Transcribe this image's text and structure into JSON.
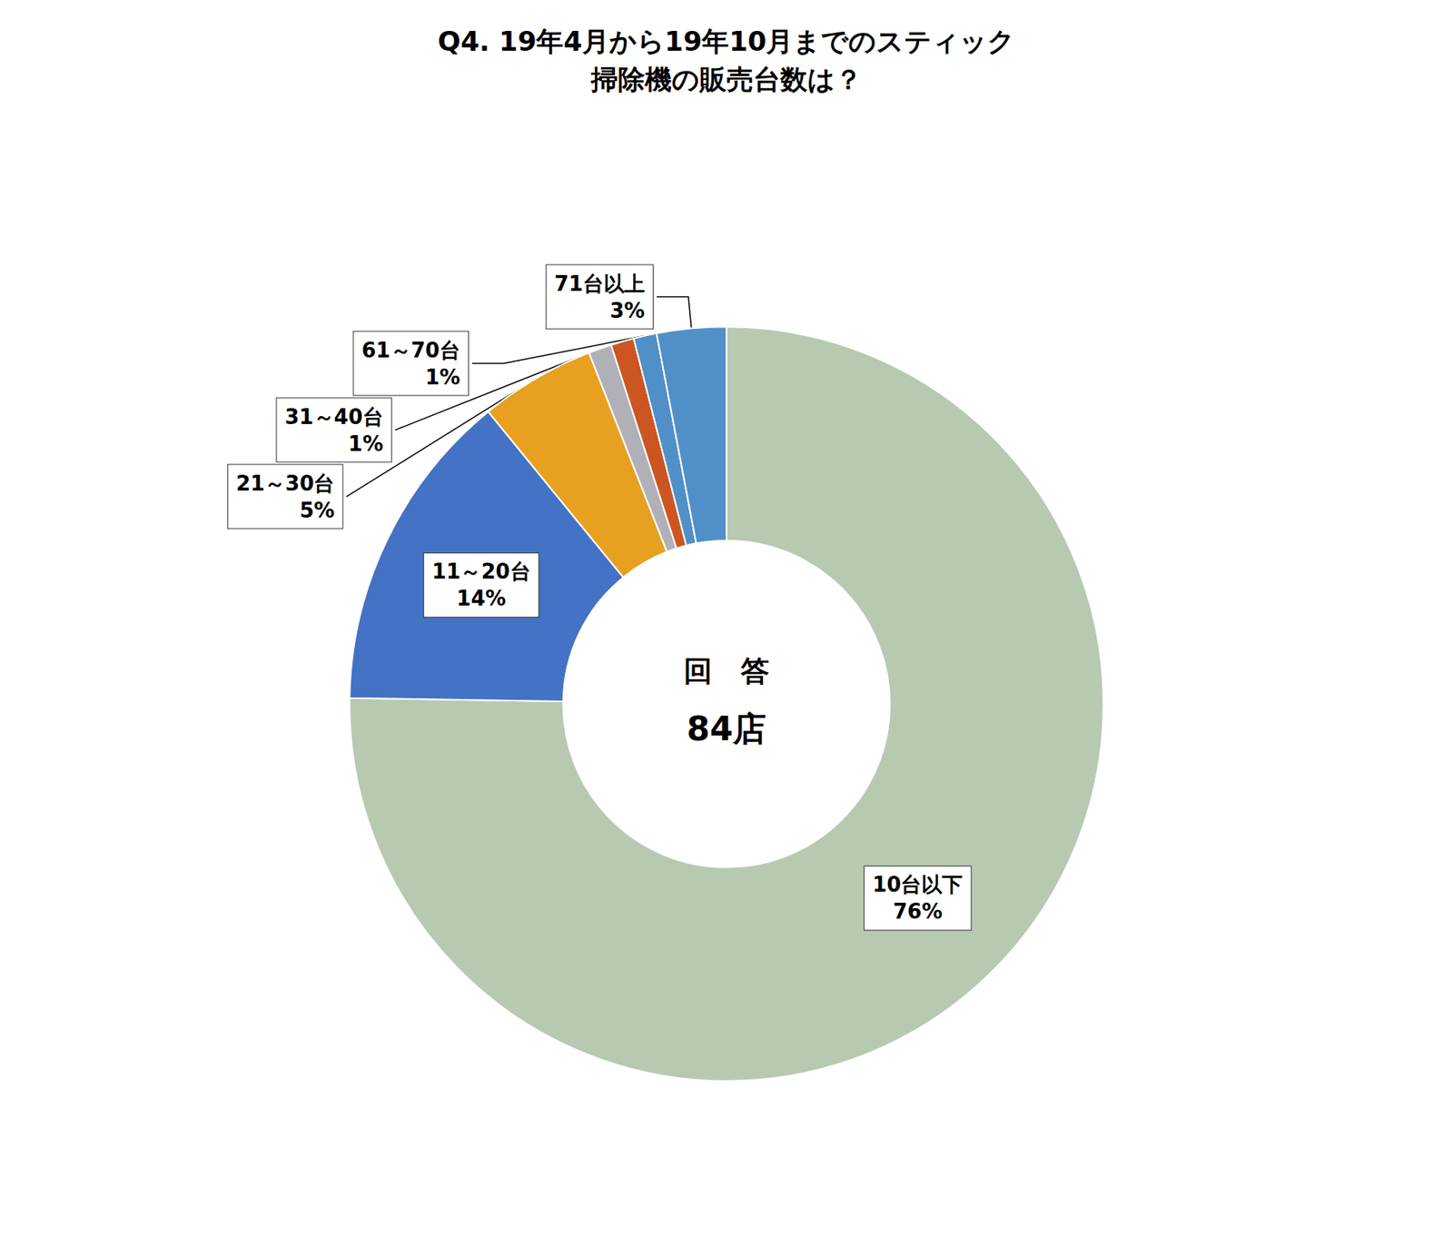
{
  "chart_data": {
    "type": "pie",
    "title": "Q4. 19年4月から19年10月までのスティック",
    "subtitle": "掃除機の販売台数は？",
    "annotations": [
      "回　答",
      "84店"
    ],
    "categories": [
      "10台以下",
      "11～20台",
      "21～30台",
      "31～40台",
      null,
      "61～70台",
      "71台以上"
    ],
    "values": [
      76,
      14,
      5,
      1,
      1,
      1,
      3
    ],
    "value_labels": [
      "76%",
      "14%",
      "5%",
      "1%",
      null,
      "1%",
      "3%"
    ],
    "colors": [
      "#b8c9b2",
      "#4472c4",
      "#e8a020",
      "#b0b0b8",
      "#cc5522",
      "#5090c8",
      "#5090c8"
    ],
    "data_labels": true
  }
}
